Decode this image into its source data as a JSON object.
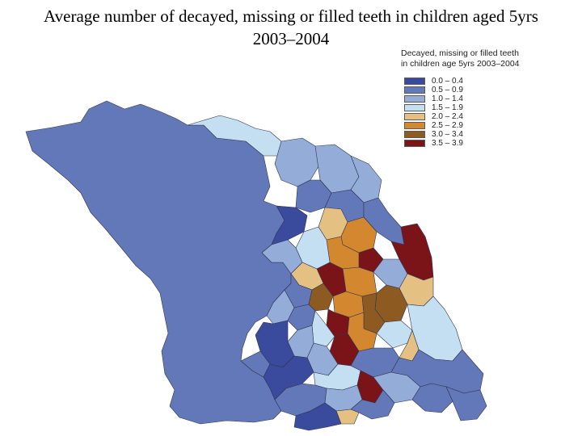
{
  "title": {
    "line1": "Average number of decayed, missing or filled teeth in children aged 5yrs",
    "line2": "2003–2004"
  },
  "legend": {
    "title_line1": "Decayed, missing or filled teeth",
    "title_line2": "in children age 5yrs 2003–2004",
    "items": [
      {
        "label": "0.0 – 0.4",
        "color": "#3a4a9c"
      },
      {
        "label": "0.5 – 0.9",
        "color": "#6378b8"
      },
      {
        "label": "1.0 – 1.4",
        "color": "#93acd8"
      },
      {
        "label": "1.5 – 1.9",
        "color": "#c4def2"
      },
      {
        "label": "2.0 – 2.4",
        "color": "#e4c083"
      },
      {
        "label": "2.5 – 2.9",
        "color": "#d3872e"
      },
      {
        "label": "3.0 – 3.4",
        "color": "#8d5a22"
      },
      {
        "label": "3.5 – 3.9",
        "color": "#7a1418"
      }
    ]
  }
}
